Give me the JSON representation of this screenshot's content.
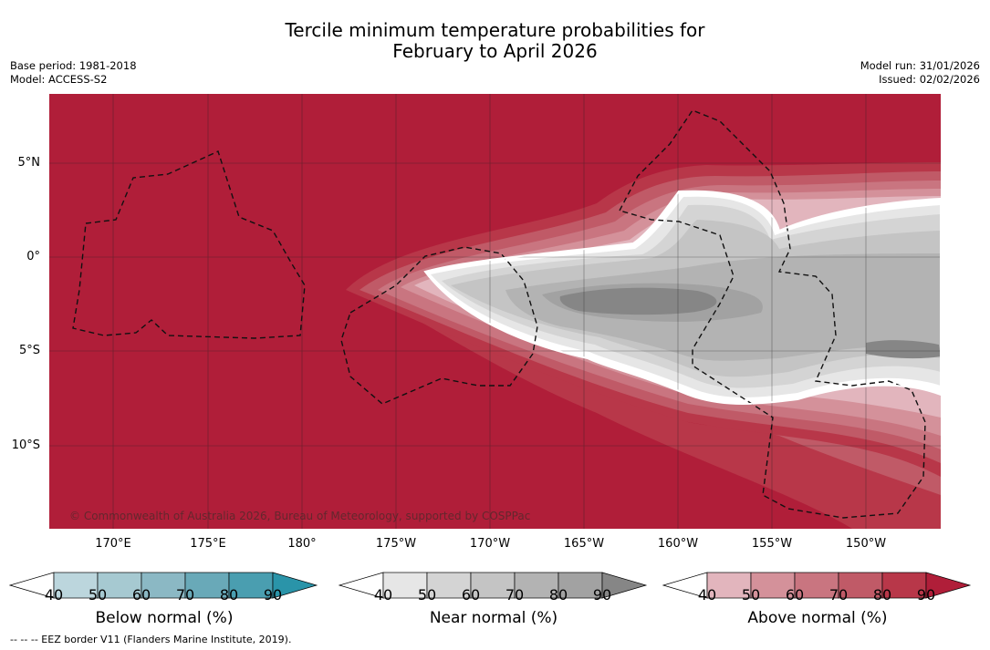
{
  "title_line1": "Tercile minimum temperature probabilities for",
  "title_line2": "February to April 2026",
  "meta_left": {
    "base_period": "Base period: 1981-2018",
    "model": "Model: ACCESS-S2"
  },
  "meta_right": {
    "model_run": "Model run: 31/01/2026",
    "issued": "Issued: 02/02/2026"
  },
  "lat_labels": [
    "5°N",
    "0°",
    "5°S",
    "10°S"
  ],
  "lon_labels": [
    "170°E",
    "175°E",
    "180°",
    "175°W",
    "170°W",
    "165°W",
    "160°W",
    "155°W",
    "150°W"
  ],
  "credit": "© Commonwealth of Australia 2026, Bureau of Meteorology, supported by COSPPac",
  "colorbars": [
    {
      "title": "Below normal (%)",
      "ticks": [
        "40",
        "50",
        "60",
        "70",
        "80",
        "90"
      ],
      "colors": [
        "#ffffff",
        "#bcd6dd",
        "#a6c9d1",
        "#8bb8c4",
        "#69a9b8",
        "#4a9eb0",
        "#2a94a9"
      ]
    },
    {
      "title": "Near normal (%)",
      "ticks": [
        "40",
        "50",
        "60",
        "70",
        "80",
        "90"
      ],
      "colors": [
        "#ffffff",
        "#e6e6e6",
        "#d4d4d4",
        "#c4c4c4",
        "#b3b3b3",
        "#a2a2a2",
        "#868686"
      ]
    },
    {
      "title": "Above normal (%)",
      "ticks": [
        "40",
        "50",
        "60",
        "70",
        "80",
        "90"
      ],
      "colors": [
        "#ffffff",
        "#e2b5bd",
        "#d4919a",
        "#c97580",
        "#c05a67",
        "#b83749",
        "#b01e39"
      ]
    }
  ],
  "footer": "--  --  -- EEZ border V11 (Flanders Marine Institute, 2019)."
}
